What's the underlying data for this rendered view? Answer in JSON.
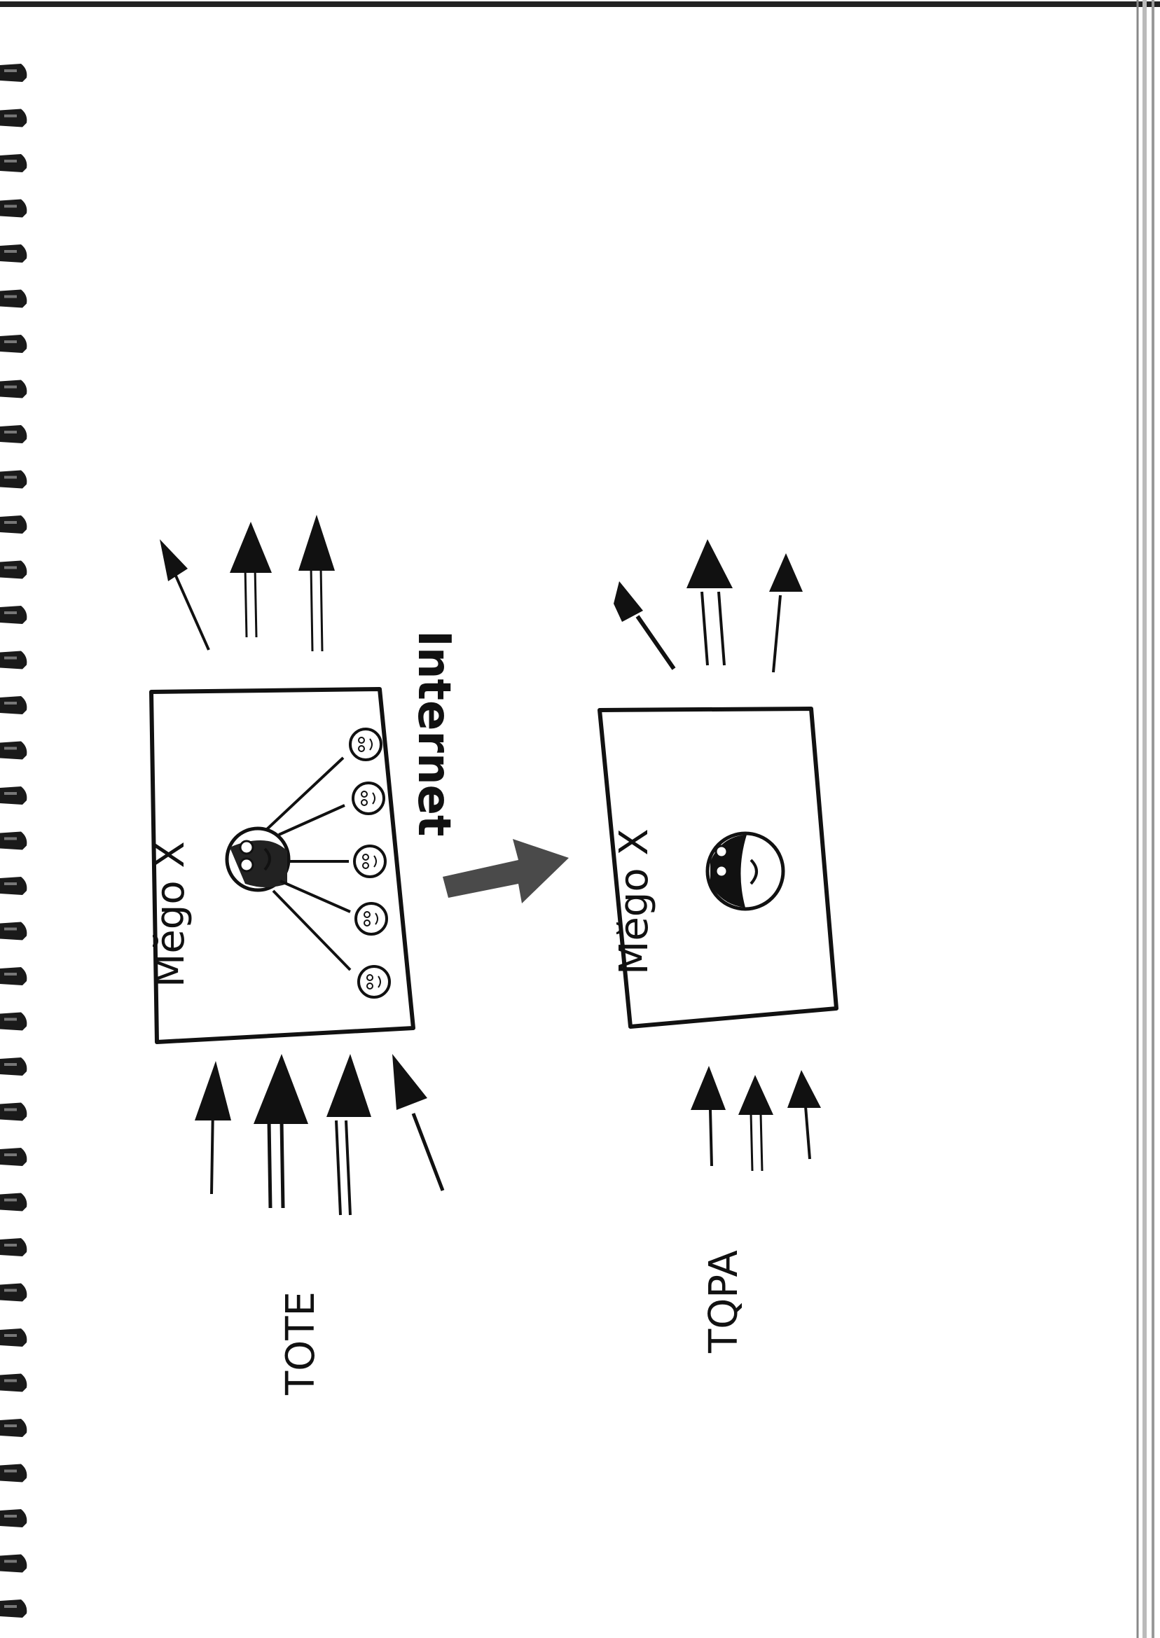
{
  "colors": {
    "paper": "#ffffff",
    "ink": "#111111",
    "arrow_gray": "#4a4a4a",
    "binding": "#1a1a1a",
    "edge": "#333333"
  },
  "left_panel": {
    "label": "Mĕgo X",
    "period_label": "TOTE",
    "arrows_out_count": 3,
    "arrows_in_count": 4,
    "member_faces_count": 5
  },
  "transition": {
    "label": "Internet",
    "icon": "big-arrow-right"
  },
  "right_panel": {
    "label": "Mĕgo X",
    "period_label": "TQPA",
    "arrows_out_count": 3,
    "arrows_in_count": 3
  }
}
